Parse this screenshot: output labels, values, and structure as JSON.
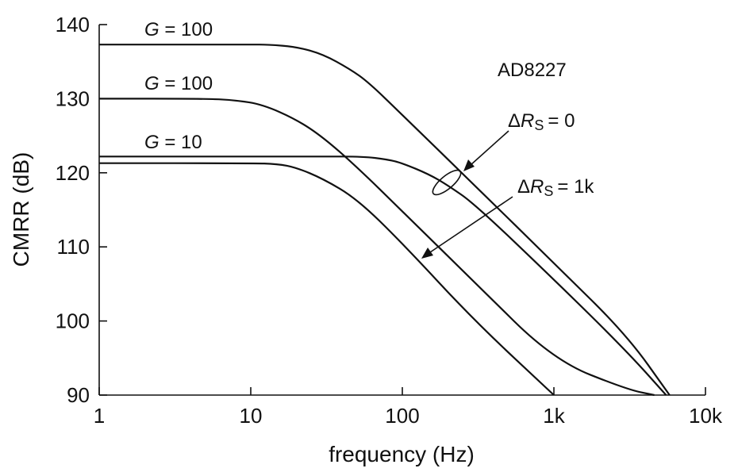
{
  "chart_data": {
    "type": "line",
    "title": "",
    "xlabel": "frequency (Hz)",
    "ylabel": "CMRR (dB)",
    "xscale": "log",
    "xlim": [
      1,
      10000
    ],
    "ylim": [
      90,
      140
    ],
    "grid": false,
    "x_ticks": [
      {
        "value": 1,
        "label": "1"
      },
      {
        "value": 10,
        "label": "10"
      },
      {
        "value": 100,
        "label": "100"
      },
      {
        "value": 1000,
        "label": "1k"
      },
      {
        "value": 10000,
        "label": "10k"
      }
    ],
    "y_ticks": [
      {
        "value": 90,
        "label": "90"
      },
      {
        "value": 100,
        "label": "100"
      },
      {
        "value": 110,
        "label": "110"
      },
      {
        "value": 120,
        "label": "120"
      },
      {
        "value": 130,
        "label": "130"
      },
      {
        "value": 140,
        "label": "140"
      }
    ],
    "series": [
      {
        "label": "G = 100",
        "x": [
          1,
          10,
          13,
          20,
          30,
          45,
          60,
          100,
          300,
          1000,
          3000,
          5800
        ],
        "y": [
          137.3,
          137.3,
          137.3,
          137.0,
          136.0,
          134.0,
          132.2,
          127.8,
          118.3,
          107.8,
          98.2,
          90
        ]
      },
      {
        "label": "G = 100",
        "x": [
          1,
          5,
          8,
          12,
          20,
          30,
          50,
          100,
          300,
          1000,
          3000,
          4600
        ],
        "y": [
          130.0,
          130.0,
          129.8,
          129.2,
          127.2,
          124.8,
          120.8,
          114.8,
          105.2,
          94.7,
          90.8,
          90
        ]
      },
      {
        "label": "G = 10",
        "x": [
          1,
          10,
          30,
          55,
          80,
          100,
          150,
          200,
          300,
          1000,
          3000,
          5500
        ],
        "y": [
          122.2,
          122.2,
          122.2,
          122.2,
          121.8,
          121.3,
          119.8,
          118.3,
          115.8,
          105.6,
          96.0,
          90
        ]
      },
      {
        "label": "",
        "x": [
          1,
          10,
          15,
          20,
          30,
          50,
          100,
          300,
          1000
        ],
        "y": [
          121.3,
          121.3,
          121.2,
          120.7,
          119.2,
          116.5,
          110.5,
          100.0,
          90
        ]
      }
    ],
    "annotations": {
      "device": "AD8227",
      "g100_top_label": "G = 100",
      "g100_mid_label": "G = 100",
      "g10_label": "G = 10",
      "delta_prefix": "Δ",
      "r_symbol": "R",
      "r_subscript": "S",
      "rs0_value": "= 0",
      "rs1k_value": "= 1k"
    }
  }
}
